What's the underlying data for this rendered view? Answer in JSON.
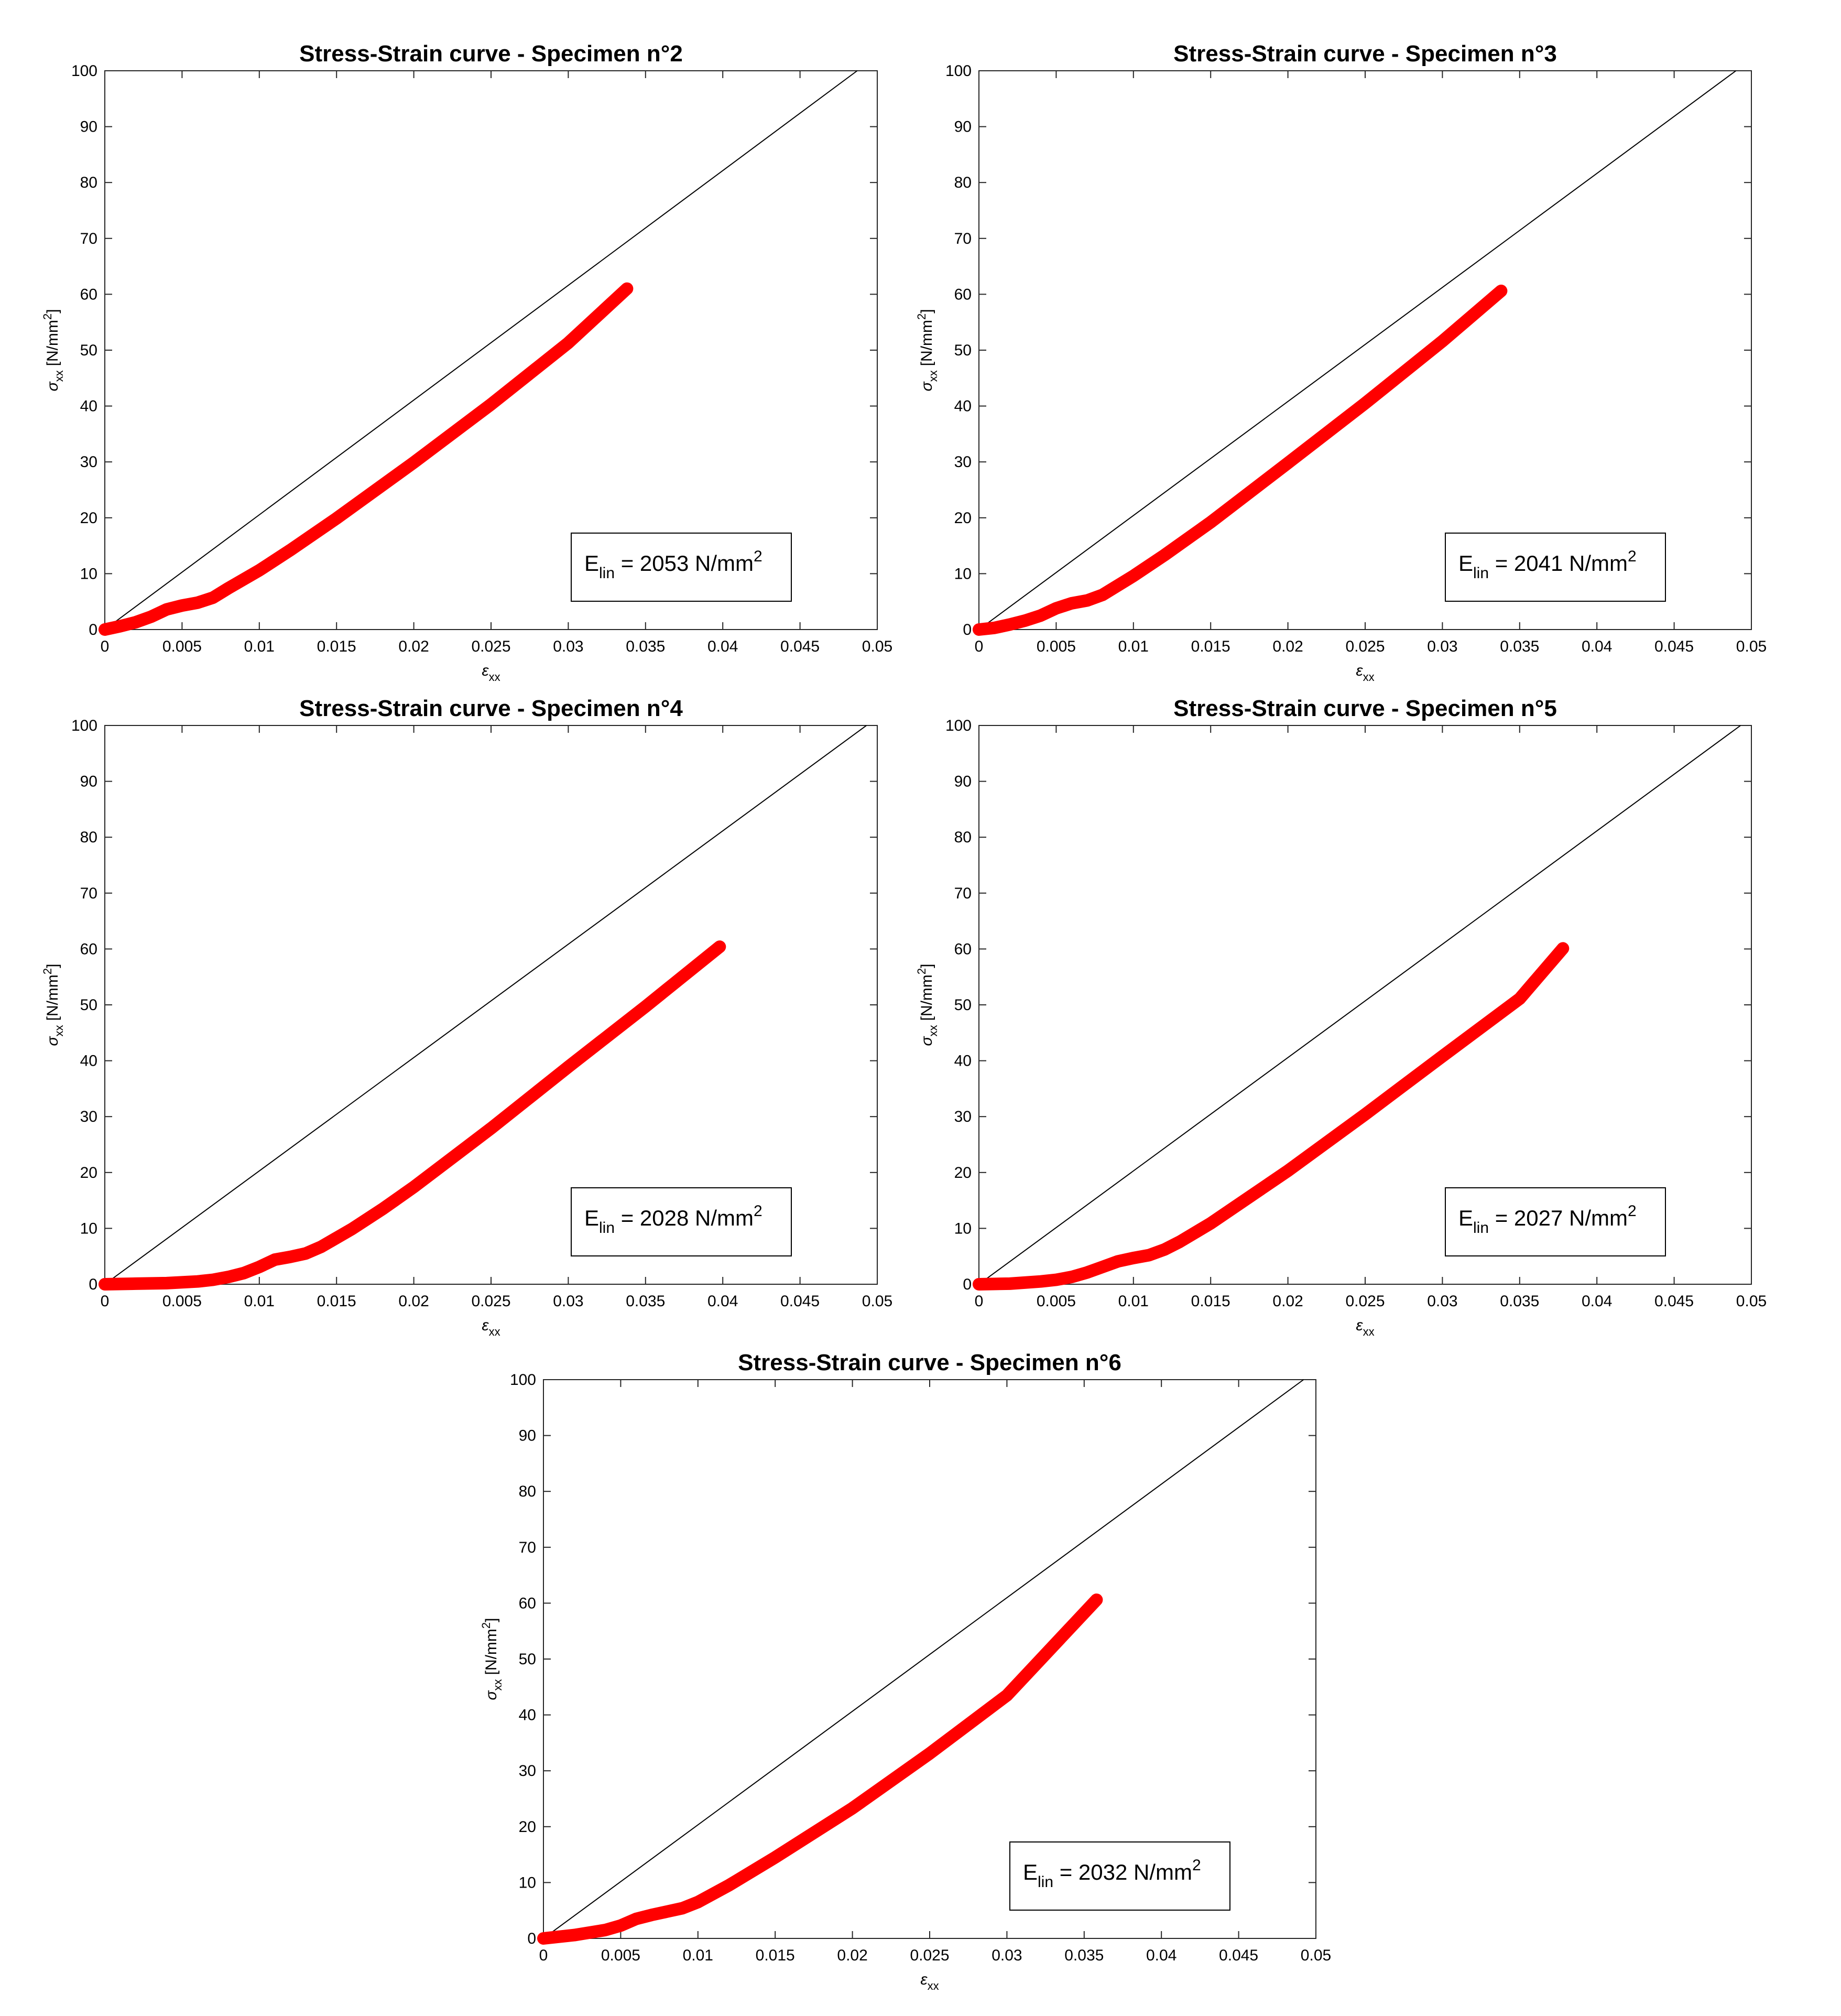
{
  "colors": {
    "data": "#ff0000",
    "reference_line": "#000000",
    "axes": "#262626",
    "background": "#ffffff"
  },
  "chart_data": [
    {
      "type": "line",
      "title": "Stress-Strain curve - Specimen n°2",
      "xlabel": "ε",
      "xlabel_sub": "xx",
      "ylabel": "σ",
      "ylabel_sub": "xx",
      "ylabel_unit": "[N/mm",
      "ylabel_unit_sup": "2",
      "ylabel_unit_end": "]",
      "xlim": [
        0,
        0.05
      ],
      "ylim": [
        0,
        100
      ],
      "xticks": [
        0,
        0.005,
        0.01,
        0.015,
        0.02,
        0.025,
        0.03,
        0.035,
        0.04,
        0.045,
        0.05
      ],
      "xtick_labels": [
        "0",
        "0.005",
        "0.01",
        "0.015",
        "0.02",
        "0.025",
        "0.03",
        "0.035",
        "0.04",
        "0.045",
        "0.05"
      ],
      "yticks": [
        0,
        10,
        20,
        30,
        40,
        50,
        60,
        70,
        80,
        90,
        100
      ],
      "ytick_labels": [
        "0",
        "10",
        "20",
        "30",
        "40",
        "50",
        "60",
        "70",
        "80",
        "90",
        "100"
      ],
      "grid": false,
      "annotation": {
        "prefix": "E",
        "sub": "lin",
        "value": " = 2053 N/mm",
        "sup": "2"
      },
      "reference_line": {
        "slope": 2053,
        "x": [
          0,
          0.0487
        ],
        "y": [
          0,
          100
        ]
      },
      "series": [
        {
          "values": [
            [
              0,
              0
            ],
            [
              0.001,
              0.6
            ],
            [
              0.002,
              1.3
            ],
            [
              0.003,
              2.3
            ],
            [
              0.004,
              3.6
            ],
            [
              0.005,
              4.3
            ],
            [
              0.006,
              4.8
            ],
            [
              0.007,
              5.7
            ],
            [
              0.008,
              7.4
            ],
            [
              0.01,
              10.6
            ],
            [
              0.012,
              14.2
            ],
            [
              0.015,
              19.9
            ],
            [
              0.02,
              29.9
            ],
            [
              0.025,
              40.3
            ],
            [
              0.03,
              51.3
            ],
            [
              0.0338,
              61
            ]
          ]
        }
      ]
    },
    {
      "type": "line",
      "title": "Stress-Strain curve - Specimen n°3",
      "xlabel": "ε",
      "xlabel_sub": "xx",
      "ylabel": "σ",
      "ylabel_sub": "xx",
      "ylabel_unit": "[N/mm",
      "ylabel_unit_sup": "2",
      "ylabel_unit_end": "]",
      "xlim": [
        0,
        0.05
      ],
      "ylim": [
        0,
        100
      ],
      "xticks": [
        0,
        0.005,
        0.01,
        0.015,
        0.02,
        0.025,
        0.03,
        0.035,
        0.04,
        0.045,
        0.05
      ],
      "xtick_labels": [
        "0",
        "0.005",
        "0.01",
        "0.015",
        "0.02",
        "0.025",
        "0.03",
        "0.035",
        "0.04",
        "0.045",
        "0.05"
      ],
      "yticks": [
        0,
        10,
        20,
        30,
        40,
        50,
        60,
        70,
        80,
        90,
        100
      ],
      "ytick_labels": [
        "0",
        "10",
        "20",
        "30",
        "40",
        "50",
        "60",
        "70",
        "80",
        "90",
        "100"
      ],
      "grid": false,
      "annotation": {
        "prefix": "E",
        "sub": "lin",
        "value": " = 2041 N/mm",
        "sup": "2"
      },
      "reference_line": {
        "slope": 2041,
        "x": [
          0,
          0.049
        ],
        "y": [
          0,
          100
        ]
      },
      "series": [
        {
          "values": [
            [
              0,
              0
            ],
            [
              0.001,
              0.3
            ],
            [
              0.002,
              0.9
            ],
            [
              0.003,
              1.6
            ],
            [
              0.004,
              2.5
            ],
            [
              0.005,
              3.8
            ],
            [
              0.006,
              4.7
            ],
            [
              0.007,
              5.2
            ],
            [
              0.008,
              6.2
            ],
            [
              0.01,
              9.6
            ],
            [
              0.012,
              13.3
            ],
            [
              0.015,
              19.2
            ],
            [
              0.02,
              29.8
            ],
            [
              0.025,
              40.5
            ],
            [
              0.03,
              51.6
            ],
            [
              0.0338,
              60.6
            ]
          ]
        }
      ]
    },
    {
      "type": "line",
      "title": "Stress-Strain curve - Specimen n°4",
      "xlabel": "ε",
      "xlabel_sub": "xx",
      "ylabel": "σ",
      "ylabel_sub": "xx",
      "ylabel_unit": "[N/mm",
      "ylabel_unit_sup": "2",
      "ylabel_unit_end": "]",
      "xlim": [
        0,
        0.05
      ],
      "ylim": [
        0,
        100
      ],
      "xticks": [
        0,
        0.005,
        0.01,
        0.015,
        0.02,
        0.025,
        0.03,
        0.035,
        0.04,
        0.045,
        0.05
      ],
      "xtick_labels": [
        "0",
        "0.005",
        "0.01",
        "0.015",
        "0.02",
        "0.025",
        "0.03",
        "0.035",
        "0.04",
        "0.045",
        "0.05"
      ],
      "yticks": [
        0,
        10,
        20,
        30,
        40,
        50,
        60,
        70,
        80,
        90,
        100
      ],
      "ytick_labels": [
        "0",
        "10",
        "20",
        "30",
        "40",
        "50",
        "60",
        "70",
        "80",
        "90",
        "100"
      ],
      "grid": false,
      "annotation": {
        "prefix": "E",
        "sub": "lin",
        "value": " = 2028 N/mm",
        "sup": "2"
      },
      "reference_line": {
        "slope": 2028,
        "x": [
          0,
          0.0493
        ],
        "y": [
          0,
          100
        ]
      },
      "series": [
        {
          "values": [
            [
              0,
              0
            ],
            [
              0.002,
              0.1
            ],
            [
              0.004,
              0.2
            ],
            [
              0.006,
              0.5
            ],
            [
              0.007,
              0.8
            ],
            [
              0.008,
              1.3
            ],
            [
              0.009,
              2
            ],
            [
              0.01,
              3.1
            ],
            [
              0.011,
              4.4
            ],
            [
              0.012,
              4.9
            ],
            [
              0.013,
              5.5
            ],
            [
              0.014,
              6.7
            ],
            [
              0.016,
              9.9
            ],
            [
              0.018,
              13.5
            ],
            [
              0.02,
              17.4
            ],
            [
              0.025,
              27.9
            ],
            [
              0.03,
              38.9
            ],
            [
              0.035,
              49.7
            ],
            [
              0.0398,
              60.4
            ]
          ]
        }
      ]
    },
    {
      "type": "line",
      "title": "Stress-Strain curve - Specimen n°5",
      "xlabel": "ε",
      "xlabel_sub": "xx",
      "ylabel": "σ",
      "ylabel_sub": "xx",
      "ylabel_unit": "[N/mm",
      "ylabel_unit_sup": "2",
      "ylabel_unit_end": "]",
      "xlim": [
        0,
        0.05
      ],
      "ylim": [
        0,
        100
      ],
      "xticks": [
        0,
        0.005,
        0.01,
        0.015,
        0.02,
        0.025,
        0.03,
        0.035,
        0.04,
        0.045,
        0.05
      ],
      "xtick_labels": [
        "0",
        "0.005",
        "0.01",
        "0.015",
        "0.02",
        "0.025",
        "0.03",
        "0.035",
        "0.04",
        "0.045",
        "0.05"
      ],
      "yticks": [
        0,
        10,
        20,
        30,
        40,
        50,
        60,
        70,
        80,
        90,
        100
      ],
      "ytick_labels": [
        "0",
        "10",
        "20",
        "30",
        "40",
        "50",
        "60",
        "70",
        "80",
        "90",
        "100"
      ],
      "grid": false,
      "annotation": {
        "prefix": "E",
        "sub": "lin",
        "value": " = 2027 N/mm",
        "sup": "2"
      },
      "reference_line": {
        "slope": 2027,
        "x": [
          0,
          0.0493
        ],
        "y": [
          0,
          100
        ]
      },
      "series": [
        {
          "values": [
            [
              0,
              0
            ],
            [
              0.002,
              0.1
            ],
            [
              0.004,
              0.5
            ],
            [
              0.005,
              0.8
            ],
            [
              0.006,
              1.3
            ],
            [
              0.007,
              2.1
            ],
            [
              0.008,
              3.1
            ],
            [
              0.009,
              4.1
            ],
            [
              0.01,
              4.7
            ],
            [
              0.011,
              5.2
            ],
            [
              0.012,
              6.2
            ],
            [
              0.013,
              7.6
            ],
            [
              0.015,
              10.9
            ],
            [
              0.02,
              20.3
            ],
            [
              0.025,
              30.4
            ],
            [
              0.03,
              40.8
            ],
            [
              0.035,
              51.1
            ],
            [
              0.0378,
              60.1
            ]
          ]
        }
      ]
    },
    {
      "type": "line",
      "title": "Stress-Strain curve - Specimen n°6",
      "xlabel": "ε",
      "xlabel_sub": "xx",
      "ylabel": "σ",
      "ylabel_sub": "xx",
      "ylabel_unit": "[N/mm",
      "ylabel_unit_sup": "2",
      "ylabel_unit_end": "]",
      "xlim": [
        0,
        0.05
      ],
      "ylim": [
        0,
        100
      ],
      "xticks": [
        0,
        0.005,
        0.01,
        0.015,
        0.02,
        0.025,
        0.03,
        0.035,
        0.04,
        0.045,
        0.05
      ],
      "xtick_labels": [
        "0",
        "0.005",
        "0.01",
        "0.015",
        "0.02",
        "0.025",
        "0.03",
        "0.035",
        "0.04",
        "0.045",
        "0.05"
      ],
      "yticks": [
        0,
        10,
        20,
        30,
        40,
        50,
        60,
        70,
        80,
        90,
        100
      ],
      "ytick_labels": [
        "0",
        "10",
        "20",
        "30",
        "40",
        "50",
        "60",
        "70",
        "80",
        "90",
        "100"
      ],
      "grid": false,
      "annotation": {
        "prefix": "E",
        "sub": "lin",
        "value": " = 2032 N/mm",
        "sup": "2"
      },
      "reference_line": {
        "slope": 2032,
        "x": [
          0,
          0.0492
        ],
        "y": [
          0,
          100
        ]
      },
      "series": [
        {
          "values": [
            [
              0,
              0
            ],
            [
              0.002,
              0.6
            ],
            [
              0.004,
              1.5
            ],
            [
              0.005,
              2.3
            ],
            [
              0.006,
              3.5
            ],
            [
              0.007,
              4.2
            ],
            [
              0.008,
              4.8
            ],
            [
              0.009,
              5.4
            ],
            [
              0.01,
              6.5
            ],
            [
              0.012,
              9.5
            ],
            [
              0.015,
              14.5
            ],
            [
              0.02,
              23.3
            ],
            [
              0.025,
              33.1
            ],
            [
              0.03,
              43.5
            ],
            [
              0.0358,
              60.6
            ]
          ]
        }
      ]
    }
  ]
}
